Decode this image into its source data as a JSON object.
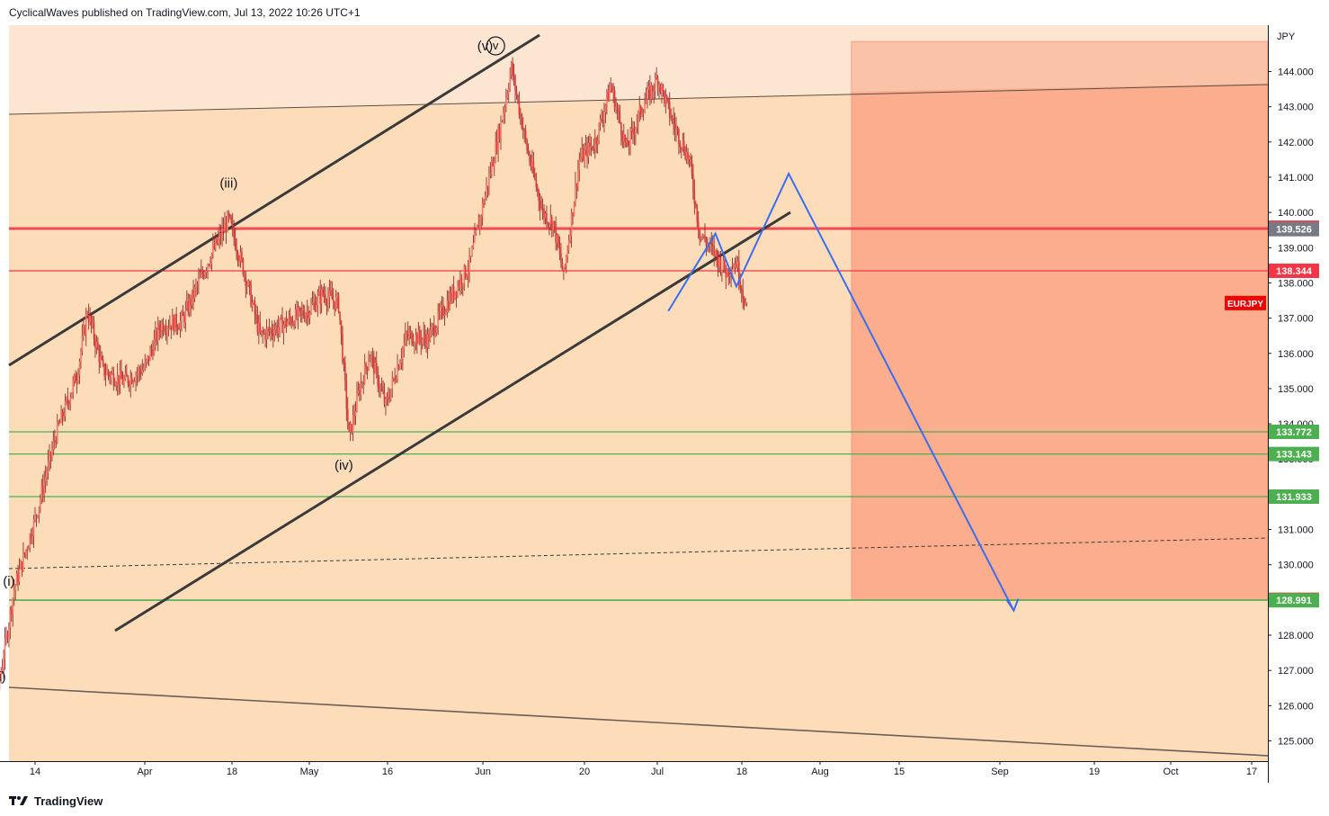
{
  "header": {
    "publisher_line": "CyclicalWaves published on TradingView.com, Jul 13, 2022 10:26 UTC+1"
  },
  "footer": {
    "brand": "TradingView",
    "logo_icon": "tradingview-logo-icon"
  },
  "colors": {
    "background_zone_upper": "#fde6d1",
    "background_zone_main": "#fddcb9",
    "target_box": "#fbad8d",
    "target_box_upper": "#fac3a8",
    "resistance_line": "#f23645",
    "support_line": "#4caf50",
    "projection": "#3a6df0",
    "candle": "#e03a3a",
    "channel": "#3a3a3a"
  },
  "chart_data": {
    "type": "candlestick",
    "symbol_label": "EURJPY",
    "currency_label": "JPY",
    "ylim": [
      124.5,
      145.0
    ],
    "y_ticks": [
      "125.000",
      "126.000",
      "127.000",
      "128.000",
      "129.000",
      "130.000",
      "131.000",
      "132.000",
      "133.000",
      "134.000",
      "135.000",
      "136.000",
      "137.000",
      "138.000",
      "139.000",
      "140.000",
      "141.000",
      "142.000",
      "143.000",
      "144.000"
    ],
    "x_ticks": [
      "14",
      "Apr",
      "18",
      "May",
      "16",
      "Jun",
      "20",
      "Jul",
      "18",
      "Aug",
      "15",
      "Sep",
      "19",
      "Oct",
      "17"
    ],
    "price_levels": [
      {
        "value": 139.566,
        "label": "139.566",
        "kind": "resistance",
        "badge_color": "#f23645"
      },
      {
        "value": 139.526,
        "label": "139.526",
        "kind": "resistance",
        "badge_color": "#787b86"
      },
      {
        "value": 138.344,
        "label": "138.344",
        "kind": "resistance",
        "badge_color": "#f23645"
      },
      {
        "value": 133.772,
        "label": "133.772",
        "kind": "support",
        "badge_color": "#4caf50"
      },
      {
        "value": 133.143,
        "label": "133.143",
        "kind": "support",
        "badge_color": "#4caf50"
      },
      {
        "value": 131.933,
        "label": "131.933",
        "kind": "support",
        "badge_color": "#4caf50"
      },
      {
        "value": 129.006,
        "label": "129.006",
        "kind": "target",
        "badge_color": "#f23645"
      },
      {
        "value": 128.991,
        "label": "128.991",
        "kind": "support",
        "badge_color": "#4caf50"
      }
    ],
    "last_price": 137.3,
    "wave_labels": [
      {
        "text": "(i)",
        "date": "Mar 9",
        "price": 129.4
      },
      {
        "text": "(ii)",
        "date": "Mar 7",
        "price": 126.7
      },
      {
        "text": "(iii)",
        "date": "Apr 20",
        "price": 140.7
      },
      {
        "text": "(iv)",
        "date": "May 12",
        "price": 132.7
      },
      {
        "text": "(v)",
        "date": "Jun 8",
        "price": 144.6
      },
      {
        "text": "v",
        "date": "Jun 10",
        "price": 144.6
      }
    ],
    "projection_path": [
      {
        "date": "Jul 13",
        "price": 137.2
      },
      {
        "date": "Jul 22",
        "price": 139.4
      },
      {
        "date": "Jul 26",
        "price": 137.9
      },
      {
        "date": "Aug 5",
        "price": 141.1
      },
      {
        "date": "Sep 17",
        "price": 128.7
      }
    ],
    "target_zone": {
      "from_date": "Aug 17",
      "price_top": 144.85,
      "price_bottom": 129.006
    },
    "candles_shown": "daily-intraday EURJPY from early Mar 2022 to Jul 13 2022"
  }
}
